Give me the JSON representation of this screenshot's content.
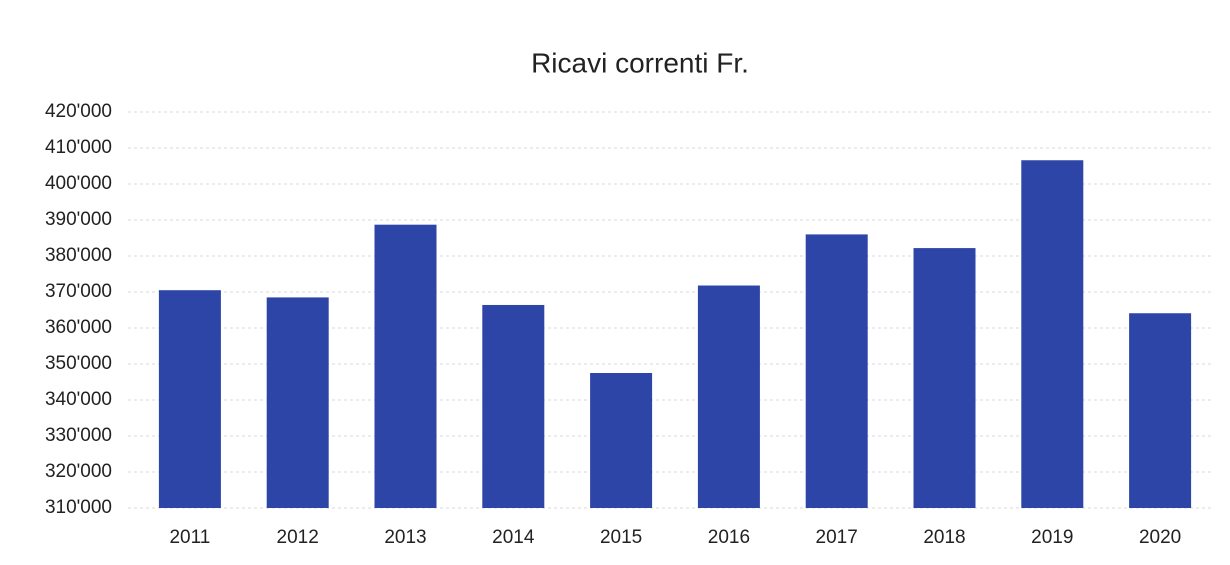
{
  "chart_data": {
    "type": "bar",
    "title": "Ricavi correnti Fr.",
    "categories": [
      "2011",
      "2012",
      "2013",
      "2014",
      "2015",
      "2016",
      "2017",
      "2018",
      "2019",
      "2020"
    ],
    "values": [
      370500,
      368500,
      388700,
      366400,
      347500,
      371800,
      386000,
      382200,
      406600,
      364100
    ],
    "color": "#2e45a8",
    "ylim": [
      310000,
      420000
    ],
    "yticks": [
      {
        "value": 310000,
        "label": "310'000"
      },
      {
        "value": 320000,
        "label": "320'000"
      },
      {
        "value": 330000,
        "label": "330'000"
      },
      {
        "value": 340000,
        "label": "340'000"
      },
      {
        "value": 350000,
        "label": "350'000"
      },
      {
        "value": 360000,
        "label": "360'000"
      },
      {
        "value": 370000,
        "label": "370'000"
      },
      {
        "value": 380000,
        "label": "380'000"
      },
      {
        "value": 390000,
        "label": "390'000"
      },
      {
        "value": 400000,
        "label": "400'000"
      },
      {
        "value": 410000,
        "label": "410'000"
      },
      {
        "value": 420000,
        "label": "420'000"
      }
    ],
    "grid": true
  }
}
